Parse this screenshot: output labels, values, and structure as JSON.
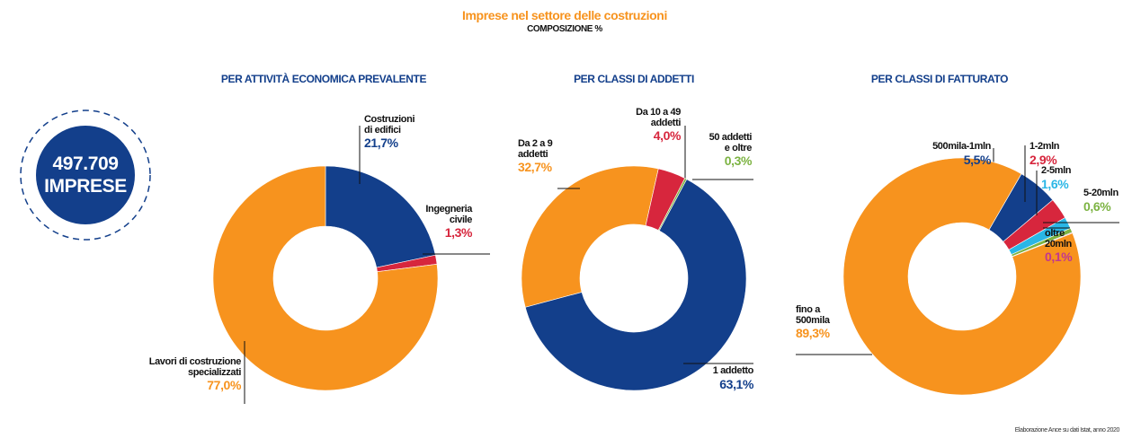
{
  "header": {
    "title": "Imprese nel settore delle costruzioni",
    "subtitle": "COMPOSIZIONE %"
  },
  "badge": {
    "value": "497.709",
    "label": "IMPRESE"
  },
  "source": "Elaborazione Ance su dati Istat, anno 2020",
  "chart_data": [
    {
      "type": "pie",
      "title": "PER ATTIVITÀ ECONOMICA PREVALENTE",
      "categories": [
        "Costruzioni\ndi edifici",
        "Ingegneria\ncivile",
        "Lavori di costruzione\nspecializzati"
      ],
      "values": [
        21.7,
        1.3,
        77.0
      ],
      "value_labels": [
        "21,7%",
        "1,3%",
        "77,0%"
      ],
      "colors": [
        "#133f8b",
        "#d7263d",
        "#f7931e"
      ]
    },
    {
      "type": "pie",
      "title": "PER CLASSI DI ADDETTI",
      "categories": [
        "Da 2 a 9\naddetti",
        "Da 10 a 49\naddetti",
        "50 addetti\ne oltre",
        "1 addetto"
      ],
      "values": [
        32.7,
        4.0,
        0.3,
        63.1
      ],
      "value_labels": [
        "32,7%",
        "4,0%",
        "0,3%",
        "63,1%"
      ],
      "colors": [
        "#f7931e",
        "#d7263d",
        "#7cb342",
        "#133f8b"
      ]
    },
    {
      "type": "pie",
      "title": "PER CLASSI DI FATTURATO",
      "categories": [
        "500mila-1mln",
        "1-2mln",
        "2-5mln",
        "5-20mln",
        "oltre\n20mln",
        "fino a\n500mila"
      ],
      "values": [
        5.5,
        2.9,
        1.6,
        0.6,
        0.1,
        89.3
      ],
      "value_labels": [
        "5,5%",
        "2,9%",
        "1,6%",
        "0,6%",
        "0,1%",
        "89,3%"
      ],
      "colors": [
        "#133f8b",
        "#d7263d",
        "#29b6e6",
        "#7cb342",
        "#c2378f",
        "#f7931e"
      ]
    }
  ]
}
